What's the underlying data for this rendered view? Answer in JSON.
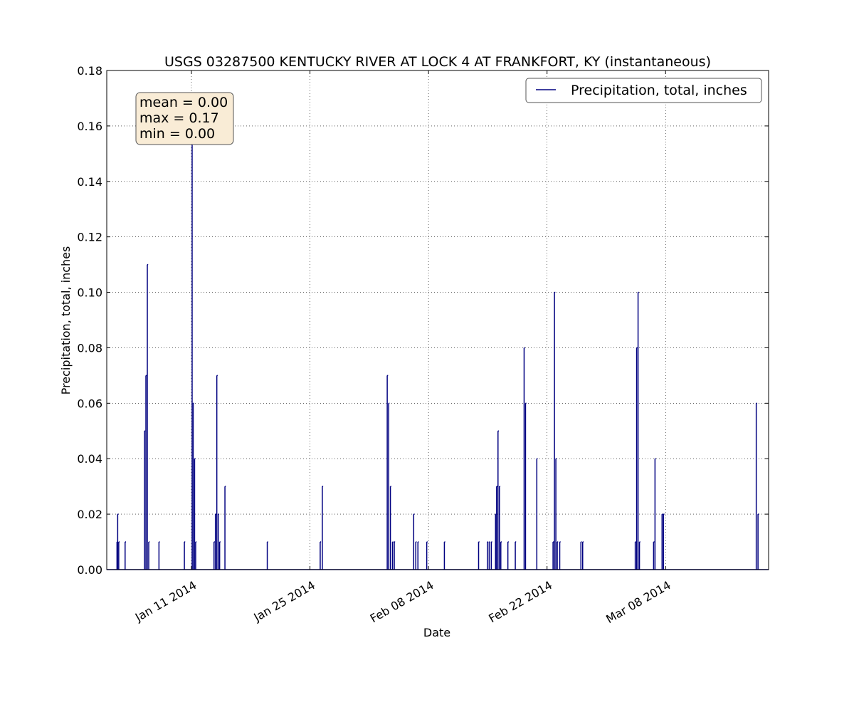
{
  "chart_data": {
    "type": "line",
    "title": "USGS 03287500 KENTUCKY RIVER AT LOCK 4 AT FRANKFORT, KY (instantaneous)",
    "xlabel": "Date",
    "ylabel": "Precipitation, total, inches",
    "x_range": [
      "2014-01-01T00:00",
      "2014-03-20T04:00"
    ],
    "ylim": [
      0,
      0.18
    ],
    "y_ticks": [
      "0.00",
      "0.02",
      "0.04",
      "0.06",
      "0.08",
      "0.10",
      "0.12",
      "0.14",
      "0.16",
      "0.18"
    ],
    "x_ticks": [
      {
        "date": "2014-01-11",
        "label": "Jan 11 2014"
      },
      {
        "date": "2014-01-25",
        "label": "Jan 25 2014"
      },
      {
        "date": "2014-02-08",
        "label": "Feb 08 2014"
      },
      {
        "date": "2014-02-22",
        "label": "Feb 22 2014"
      },
      {
        "date": "2014-03-08",
        "label": "Mar 08 2014"
      }
    ],
    "grid": true,
    "legend_position": "upper right",
    "stats_box": [
      "mean = 0.00",
      "max = 0.17",
      "min = 0.00"
    ],
    "series": [
      {
        "name": "Precipitation, total, inches",
        "color": "#000080",
        "points": [
          [
            "2014-01-02T05:00",
            0.01
          ],
          [
            "2014-01-02T07:00",
            0.02
          ],
          [
            "2014-01-02T10:00",
            0.01
          ],
          [
            "2014-01-03T04:00",
            0.01
          ],
          [
            "2014-01-05T11:00",
            0.05
          ],
          [
            "2014-01-05T15:00",
            0.07
          ],
          [
            "2014-01-05T19:00",
            0.11
          ],
          [
            "2014-01-05T23:00",
            0.01
          ],
          [
            "2014-01-07T04:00",
            0.01
          ],
          [
            "2014-01-10T04:00",
            0.01
          ],
          [
            "2014-01-11T02:00",
            0.17
          ],
          [
            "2014-01-11T05:00",
            0.06
          ],
          [
            "2014-01-11T09:00",
            0.04
          ],
          [
            "2014-01-11T12:00",
            0.01
          ],
          [
            "2014-01-13T16:00",
            0.01
          ],
          [
            "2014-01-13T20:00",
            0.02
          ],
          [
            "2014-01-14T00:00",
            0.07
          ],
          [
            "2014-01-14T04:00",
            0.02
          ],
          [
            "2014-01-14T08:00",
            0.01
          ],
          [
            "2014-01-14T23:00",
            0.03
          ],
          [
            "2014-01-19T23:00",
            0.01
          ],
          [
            "2014-01-26T05:00",
            0.01
          ],
          [
            "2014-01-26T11:00",
            0.03
          ],
          [
            "2014-02-03T03:00",
            0.07
          ],
          [
            "2014-02-03T07:00",
            0.06
          ],
          [
            "2014-02-03T12:00",
            0.03
          ],
          [
            "2014-02-03T18:00",
            0.01
          ],
          [
            "2014-02-03T23:00",
            0.01
          ],
          [
            "2014-02-06T06:00",
            0.02
          ],
          [
            "2014-02-06T12:00",
            0.01
          ],
          [
            "2014-02-06T18:00",
            0.01
          ],
          [
            "2014-02-07T19:00",
            0.01
          ],
          [
            "2014-02-09T21:00",
            0.01
          ],
          [
            "2014-02-13T22:00",
            0.01
          ],
          [
            "2014-02-14T23:00",
            0.01
          ],
          [
            "2014-02-15T04:00",
            0.01
          ],
          [
            "2014-02-15T10:00",
            0.01
          ],
          [
            "2014-02-15T22:00",
            0.02
          ],
          [
            "2014-02-16T01:00",
            0.03
          ],
          [
            "2014-02-16T05:00",
            0.05
          ],
          [
            "2014-02-16T09:00",
            0.03
          ],
          [
            "2014-02-16T13:00",
            0.01
          ],
          [
            "2014-02-17T09:00",
            0.01
          ],
          [
            "2014-02-18T06:00",
            0.01
          ],
          [
            "2014-02-19T07:00",
            0.08
          ],
          [
            "2014-02-19T11:00",
            0.06
          ],
          [
            "2014-02-20T19:00",
            0.04
          ],
          [
            "2014-02-22T17:00",
            0.01
          ],
          [
            "2014-02-22T21:00",
            0.1
          ],
          [
            "2014-02-23T01:00",
            0.04
          ],
          [
            "2014-02-23T05:00",
            0.01
          ],
          [
            "2014-02-23T12:00",
            0.01
          ],
          [
            "2014-02-26T00:00",
            0.01
          ],
          [
            "2014-02-26T05:00",
            0.01
          ],
          [
            "2014-03-04T10:00",
            0.01
          ],
          [
            "2014-03-04T14:00",
            0.08
          ],
          [
            "2014-03-04T18:00",
            0.1
          ],
          [
            "2014-03-04T22:00",
            0.01
          ],
          [
            "2014-03-06T14:00",
            0.01
          ],
          [
            "2014-03-06T18:00",
            0.04
          ],
          [
            "2014-03-07T14:00",
            0.02
          ],
          [
            "2014-03-07T18:00",
            0.02
          ],
          [
            "2014-03-18T17:00",
            0.06
          ],
          [
            "2014-03-18T22:00",
            0.02
          ]
        ]
      }
    ]
  }
}
